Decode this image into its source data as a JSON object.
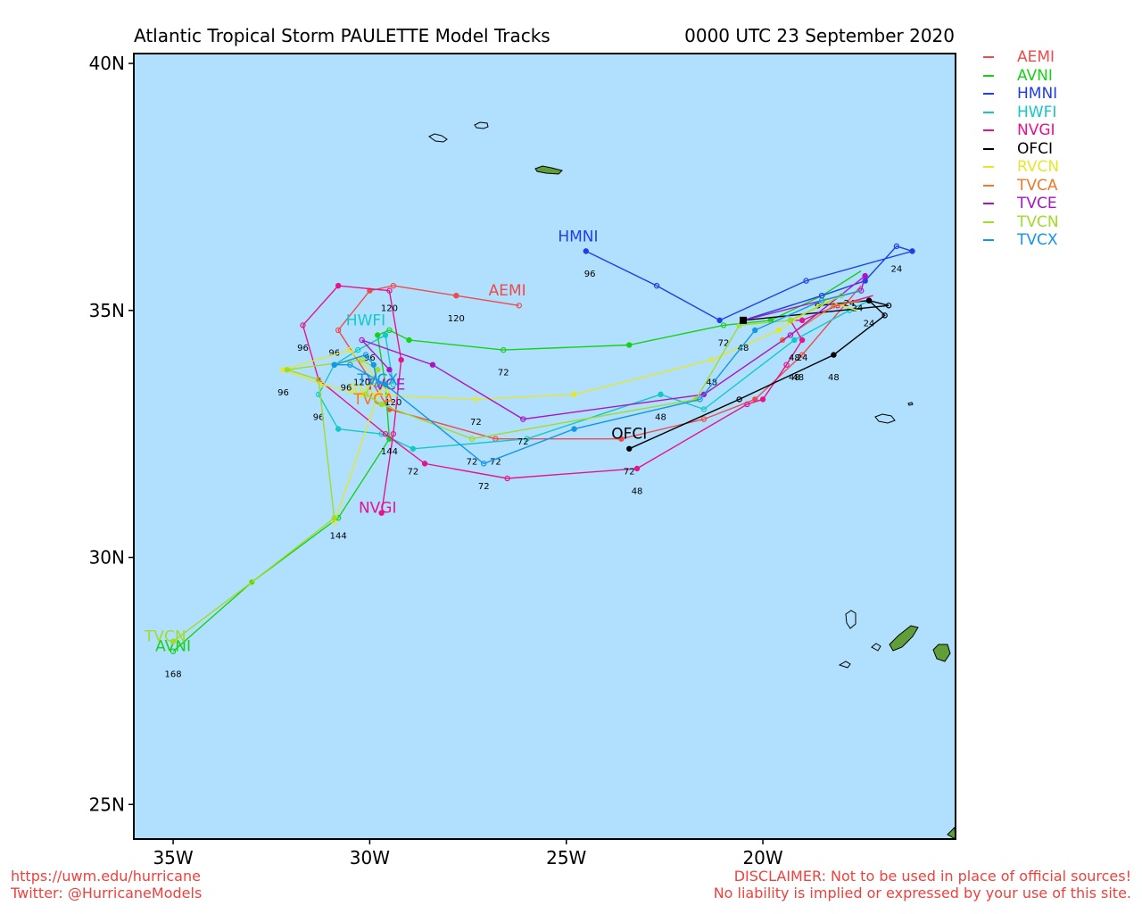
{
  "title": "Atlantic Tropical Storm PAULETTE Model Tracks",
  "datetime": "0000 UTC 23 September 2020",
  "colors": {
    "ocean": "#b0e0fe",
    "land": "#5f9e38",
    "frame": "#000000"
  },
  "lat_ticks": [
    {
      "value": 40,
      "label": "40N"
    },
    {
      "value": 35,
      "label": "35N"
    },
    {
      "value": 30,
      "label": "30N"
    },
    {
      "value": 25,
      "label": "25N"
    }
  ],
  "lon_ticks": [
    {
      "value": -35,
      "label": "35W"
    },
    {
      "value": -30,
      "label": "30W"
    },
    {
      "value": -25,
      "label": "25W"
    },
    {
      "value": -20,
      "label": "20W"
    }
  ],
  "map_extent": {
    "lon_min": -36.0,
    "lon_max": -15.1,
    "lat_min": 24.3,
    "lat_max": 40.2
  },
  "current_position": {
    "lon": -20.5,
    "lat": 34.8
  },
  "models": [
    {
      "name": "AEMI",
      "color": "#f04a4a",
      "label_at": [
        -26.5,
        35.3
      ],
      "track": [
        [
          -17.5,
          35.5
        ],
        [
          -19.0,
          34.1
        ],
        [
          -20.2,
          33.2
        ],
        [
          -21.5,
          32.8
        ],
        [
          -23.6,
          32.4
        ],
        [
          -26.8,
          32.4
        ],
        [
          -29.5,
          33.0
        ],
        [
          -30.8,
          34.6
        ],
        [
          -30.0,
          35.4
        ],
        [
          -29.4,
          35.5
        ],
        [
          -27.8,
          35.3
        ],
        [
          -26.2,
          35.1
        ]
      ],
      "labels": [
        {
          "text": "24",
          "lon": -17.8,
          "lat": 35.3
        },
        {
          "text": "48",
          "lon": -19.1,
          "lat": 33.8
        },
        {
          "text": "72",
          "lon": -26.8,
          "lat": 32.1
        },
        {
          "text": "96",
          "lon": -30.9,
          "lat": 34.3
        },
        {
          "text": "120",
          "lon": -27.8,
          "lat": 35.0
        }
      ]
    },
    {
      "name": "AVNI",
      "color": "#18d018",
      "label_at": [
        -35.0,
        28.1
      ],
      "track": [
        [
          -17.5,
          35.8
        ],
        [
          -18.5,
          35.3
        ],
        [
          -19.8,
          34.8
        ],
        [
          -21.0,
          34.7
        ],
        [
          -23.4,
          34.3
        ],
        [
          -26.6,
          34.2
        ],
        [
          -29.0,
          34.4
        ],
        [
          -29.5,
          34.6
        ],
        [
          -29.8,
          34.5
        ],
        [
          -29.6,
          33.5
        ],
        [
          -29.5,
          32.4
        ],
        [
          -30.8,
          30.8
        ],
        [
          -33.0,
          29.5
        ],
        [
          -35.0,
          28.1
        ]
      ],
      "labels": [
        {
          "text": "72",
          "lon": -26.6,
          "lat": 33.9
        },
        {
          "text": "144",
          "lon": -30.8,
          "lat": 30.6
        },
        {
          "text": "168",
          "lon": -35.0,
          "lat": 27.8
        }
      ]
    },
    {
      "name": "HMNI",
      "color": "#1e3ee8",
      "label_at": [
        -24.7,
        36.4
      ],
      "track": [
        [
          -20.5,
          34.8
        ],
        [
          -18.5,
          35.3
        ],
        [
          -17.4,
          35.6
        ],
        [
          -16.6,
          36.3
        ],
        [
          -16.2,
          36.2
        ],
        [
          -18.9,
          35.6
        ],
        [
          -21.1,
          34.8
        ],
        [
          -22.7,
          35.5
        ],
        [
          -24.5,
          36.2
        ]
      ],
      "labels": [
        {
          "text": "24",
          "lon": -16.6,
          "lat": 36.0
        },
        {
          "text": "72",
          "lon": -21.0,
          "lat": 34.5
        },
        {
          "text": "96",
          "lon": -24.4,
          "lat": 35.9
        }
      ]
    },
    {
      "name": "HWFI",
      "color": "#14c8c8",
      "label_at": [
        -30.1,
        34.7
      ],
      "track": [
        [
          -17.3,
          35.2
        ],
        [
          -17.8,
          35.0
        ],
        [
          -19.2,
          34.4
        ],
        [
          -21.5,
          33.0
        ],
        [
          -22.6,
          33.3
        ],
        [
          -26.0,
          32.4
        ],
        [
          -28.9,
          32.2
        ],
        [
          -29.7,
          32.5
        ],
        [
          -30.8,
          32.6
        ],
        [
          -31.3,
          33.3
        ],
        [
          -30.9,
          33.9
        ],
        [
          -30.3,
          34.2
        ],
        [
          -29.6,
          34.5
        ],
        [
          -29.4,
          33.5
        ]
      ],
      "labels": [
        {
          "text": "24",
          "lon": -17.6,
          "lat": 35.2
        },
        {
          "text": "48",
          "lon": -22.6,
          "lat": 33.0
        },
        {
          "text": "72",
          "lon": -28.9,
          "lat": 31.9
        },
        {
          "text": "96",
          "lon": -31.3,
          "lat": 33.0
        },
        {
          "text": "120",
          "lon": -29.4,
          "lat": 33.3
        }
      ]
    },
    {
      "name": "NVGI",
      "color": "#e6148c",
      "label_at": [
        -29.8,
        30.9
      ],
      "track": [
        [
          -17.2,
          35.3
        ],
        [
          -18.1,
          35.1
        ],
        [
          -19.0,
          34.8
        ],
        [
          -19.3,
          34.8
        ],
        [
          -19.0,
          34.4
        ],
        [
          -19.4,
          33.9
        ],
        [
          -20.0,
          33.2
        ],
        [
          -20.4,
          33.1
        ],
        [
          -23.2,
          31.8
        ],
        [
          -26.5,
          31.6
        ],
        [
          -28.6,
          31.9
        ],
        [
          -29.6,
          32.5
        ],
        [
          -31.3,
          33.6
        ],
        [
          -31.7,
          34.7
        ],
        [
          -30.8,
          35.5
        ],
        [
          -29.5,
          35.4
        ],
        [
          -29.2,
          34.0
        ],
        [
          -29.4,
          32.5
        ],
        [
          -29.7,
          30.9
        ]
      ],
      "labels": [
        {
          "text": "24",
          "lon": -19.0,
          "lat": 34.2
        },
        {
          "text": "48",
          "lon": -23.2,
          "lat": 31.5
        },
        {
          "text": "96",
          "lon": -31.7,
          "lat": 34.4
        },
        {
          "text": "120",
          "lon": -29.5,
          "lat": 35.2
        },
        {
          "text": "144",
          "lon": -29.5,
          "lat": 32.3
        }
      ]
    },
    {
      "name": "OFCI",
      "color": "#000000",
      "label_at": [
        -23.4,
        32.4
      ],
      "track": [
        [
          -20.5,
          34.8
        ],
        [
          -16.8,
          35.1
        ],
        [
          -17.3,
          35.2
        ],
        [
          -18.6,
          35.1
        ],
        [
          -17.3,
          35.2
        ],
        [
          -16.9,
          34.9
        ],
        [
          -18.2,
          34.1
        ],
        [
          -20.6,
          33.2
        ],
        [
          -23.4,
          32.2
        ]
      ],
      "labels": [
        {
          "text": "24",
          "lon": -17.3,
          "lat": 34.9
        },
        {
          "text": "48",
          "lon": -18.2,
          "lat": 33.8
        },
        {
          "text": "72",
          "lon": -23.4,
          "lat": 31.9
        }
      ]
    },
    {
      "name": "RVCN",
      "color": "#e6e62e",
      "label_at": [
        -30.0,
        33.3
      ],
      "track": [
        [
          -17.6,
          35.0
        ],
        [
          -18.4,
          35.2
        ],
        [
          -19.6,
          34.6
        ],
        [
          -21.3,
          34.0
        ],
        [
          -24.8,
          33.3
        ],
        [
          -27.3,
          33.2
        ],
        [
          -30.2,
          33.3
        ],
        [
          -31.2,
          33.5
        ],
        [
          -32.2,
          33.8
        ],
        [
          -30.5,
          34.2
        ],
        [
          -29.7,
          33.5
        ],
        [
          -30.9,
          30.7
        ]
      ],
      "labels": [
        {
          "text": "48",
          "lon": -21.3,
          "lat": 33.7
        },
        {
          "text": "72",
          "lon": -27.3,
          "lat": 32.9
        },
        {
          "text": "96",
          "lon": -32.2,
          "lat": 33.5
        }
      ]
    },
    {
      "name": "TVCA",
      "color": "#f07828",
      "label_at": [
        -29.9,
        33.1
      ],
      "track": [
        [
          -17.5,
          35.2
        ],
        [
          -18.2,
          35.1
        ],
        [
          -19.5,
          34.4
        ]
      ],
      "labels": []
    },
    {
      "name": "TVCE",
      "color": "#aa14c8",
      "label_at": [
        -29.6,
        33.4
      ],
      "track": [
        [
          -20.5,
          34.8
        ],
        [
          -17.5,
          35.4
        ],
        [
          -17.4,
          35.7
        ],
        [
          -19.3,
          34.5
        ],
        [
          -21.5,
          33.3
        ],
        [
          -26.1,
          32.8
        ],
        [
          -28.4,
          33.9
        ],
        [
          -30.2,
          34.4
        ],
        [
          -29.5,
          33.8
        ]
      ],
      "labels": [
        {
          "text": "48",
          "lon": -19.2,
          "lat": 34.2
        },
        {
          "text": "72",
          "lon": -26.1,
          "lat": 32.5
        },
        {
          "text": "96",
          "lon": -30.0,
          "lat": 34.2
        }
      ]
    },
    {
      "name": "TVCN",
      "color": "#a0dc28",
      "label_at": [
        -35.2,
        28.3
      ],
      "track": [
        [
          -17.5,
          35.4
        ],
        [
          -18.0,
          35.3
        ],
        [
          -19.3,
          34.8
        ],
        [
          -20.6,
          34.7
        ],
        [
          -21.7,
          33.2
        ],
        [
          -27.4,
          32.4
        ],
        [
          -29.7,
          33.1
        ],
        [
          -30.1,
          33.3
        ],
        [
          -29.8,
          33.8
        ],
        [
          -30.2,
          34.0
        ],
        [
          -32.1,
          33.8
        ],
        [
          -31.3,
          33.6
        ],
        [
          -30.9,
          30.8
        ],
        [
          -33.0,
          29.5
        ],
        [
          -35.0,
          28.3
        ]
      ],
      "labels": [
        {
          "text": "48",
          "lon": -20.5,
          "lat": 34.4
        },
        {
          "text": "72",
          "lon": -27.4,
          "lat": 32.1
        }
      ]
    },
    {
      "name": "TVCX",
      "color": "#1496e6",
      "label_at": [
        -29.8,
        33.5
      ],
      "track": [
        [
          -17.5,
          35.4
        ],
        [
          -18.5,
          35.2
        ],
        [
          -20.2,
          34.6
        ],
        [
          -21.6,
          33.2
        ],
        [
          -24.8,
          32.6
        ],
        [
          -27.1,
          31.9
        ],
        [
          -29.6,
          33.5
        ],
        [
          -30.5,
          33.9
        ],
        [
          -30.9,
          33.9
        ],
        [
          -30.1,
          34.1
        ],
        [
          -29.9,
          33.9
        ],
        [
          -29.8,
          33.5
        ]
      ],
      "labels": [
        {
          "text": "48",
          "lon": -19.2,
          "lat": 33.8
        },
        {
          "text": "72",
          "lon": -27.1,
          "lat": 31.6
        },
        {
          "text": "96",
          "lon": -30.6,
          "lat": 33.6
        },
        {
          "text": "120",
          "lon": -30.2,
          "lat": 33.7
        }
      ]
    }
  ],
  "footer": {
    "left_line1": "https://uwm.edu/hurricane",
    "left_line2": "Twitter: @HurricaneModels",
    "right_line1": "DISCLAIMER: Not to be used in place of official sources!",
    "right_line2": "No liability is implied or expressed by your use of this site."
  }
}
